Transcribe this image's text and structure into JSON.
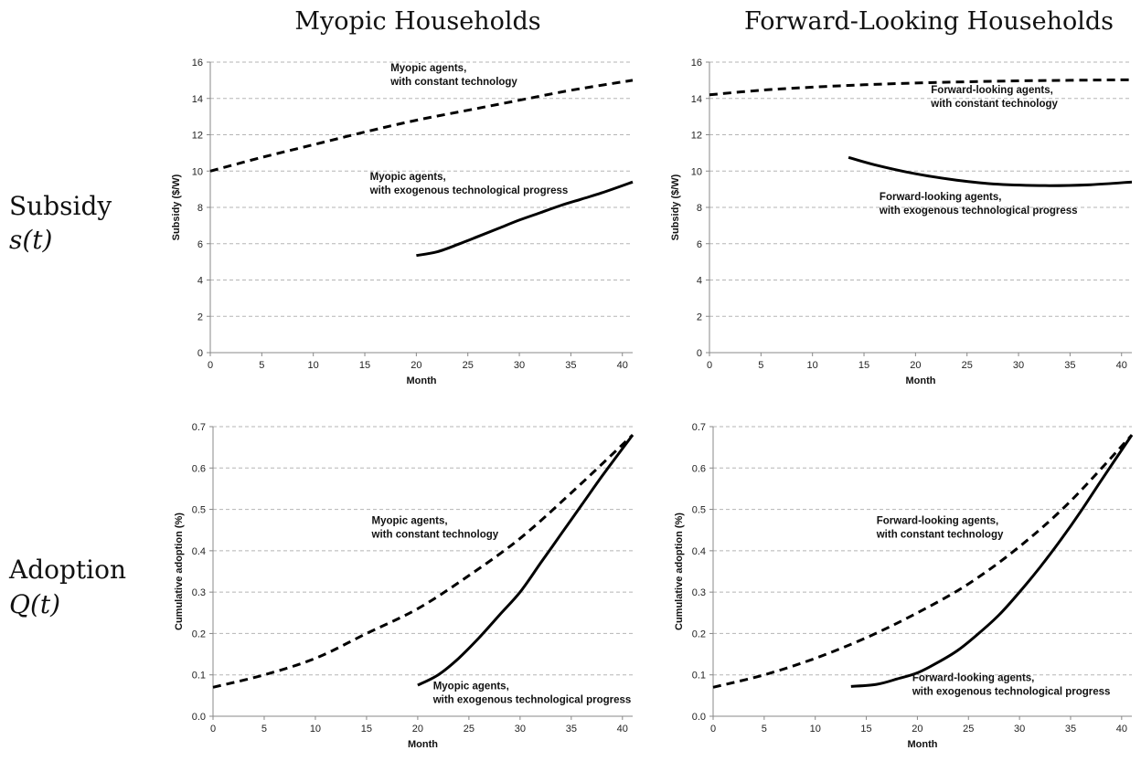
{
  "column_titles": [
    "Myopic Households",
    "Forward-Looking Households"
  ],
  "row_labels": [
    {
      "label": "Subsidy",
      "math": "s(t)"
    },
    {
      "label": "Adoption",
      "math": "Q(t)"
    }
  ],
  "chart_data": [
    {
      "type": "line",
      "title": "",
      "xlabel": "Month",
      "ylabel": "Subsidy ($/W)",
      "xlim": [
        0,
        41
      ],
      "ylim": [
        0,
        16
      ],
      "xticks": [
        0,
        5,
        10,
        15,
        20,
        25,
        30,
        35,
        40
      ],
      "yticks": [
        0,
        2,
        4,
        6,
        8,
        10,
        12,
        14,
        16
      ],
      "grid": true,
      "series": [
        {
          "style": "dashed",
          "x": [
            0,
            5,
            10,
            15,
            20,
            25,
            30,
            35,
            41
          ],
          "y": [
            10.0,
            10.75,
            11.45,
            12.15,
            12.8,
            13.35,
            13.9,
            14.45,
            15.0
          ]
        },
        {
          "style": "solid",
          "x": [
            20,
            22,
            24,
            26,
            28,
            30,
            32,
            34,
            36,
            38,
            41
          ],
          "y": [
            5.35,
            5.55,
            5.95,
            6.4,
            6.85,
            7.3,
            7.7,
            8.1,
            8.45,
            8.8,
            9.4
          ]
        }
      ],
      "annotations": [
        {
          "text": [
            "Myopic agents,",
            "with constant technology"
          ],
          "x": 17.5,
          "y": 15.5
        },
        {
          "text": [
            "Myopic agents,",
            "with exogenous technological progress"
          ],
          "x": 15.5,
          "y": 9.5
        }
      ]
    },
    {
      "type": "line",
      "title": "",
      "xlabel": "Month",
      "ylabel": "Subsidy ($/W)",
      "xlim": [
        0,
        41
      ],
      "ylim": [
        0,
        16
      ],
      "xticks": [
        0,
        5,
        10,
        15,
        20,
        25,
        30,
        35,
        40
      ],
      "yticks": [
        0,
        2,
        4,
        6,
        8,
        10,
        12,
        14,
        16
      ],
      "grid": true,
      "series": [
        {
          "style": "dashed",
          "x": [
            0,
            5,
            10,
            15,
            20,
            25,
            30,
            35,
            41
          ],
          "y": [
            14.2,
            14.45,
            14.62,
            14.75,
            14.85,
            14.92,
            14.97,
            15.0,
            15.03
          ]
        },
        {
          "style": "solid",
          "x": [
            13.5,
            16,
            20,
            24,
            28,
            33,
            37,
            41
          ],
          "y": [
            10.75,
            10.35,
            9.85,
            9.5,
            9.28,
            9.2,
            9.25,
            9.4
          ]
        }
      ],
      "annotations": [
        {
          "text": [
            "Forward-looking agents,",
            "with constant technology"
          ],
          "x": 21.5,
          "y": 14.3
        },
        {
          "text": [
            "Forward-looking agents,",
            "with exogenous technological progress"
          ],
          "x": 16.5,
          "y": 8.4
        }
      ]
    },
    {
      "type": "line",
      "title": "",
      "xlabel": "Month",
      "ylabel": "Cumulative adoption (%)",
      "xlim": [
        0,
        41
      ],
      "ylim": [
        0,
        0.7
      ],
      "xticks": [
        0,
        5,
        10,
        15,
        20,
        25,
        30,
        35,
        40
      ],
      "yticks": [
        0.0,
        0.1,
        0.2,
        0.3,
        0.4,
        0.5,
        0.6,
        0.7
      ],
      "grid": true,
      "series": [
        {
          "style": "dashed",
          "x": [
            0,
            5,
            10,
            15,
            20,
            25,
            30,
            35,
            41
          ],
          "y": [
            0.07,
            0.1,
            0.14,
            0.2,
            0.26,
            0.34,
            0.43,
            0.54,
            0.68
          ]
        },
        {
          "style": "solid",
          "x": [
            20,
            22,
            24,
            26,
            28,
            30,
            32,
            34,
            36,
            38,
            41
          ],
          "y": [
            0.075,
            0.1,
            0.14,
            0.19,
            0.245,
            0.3,
            0.37,
            0.44,
            0.51,
            0.58,
            0.68
          ]
        }
      ],
      "annotations": [
        {
          "text": [
            "Myopic agents,",
            "with constant technology"
          ],
          "x": 15.5,
          "y": 0.465
        },
        {
          "text": [
            "Myopic agents,",
            "with exogenous technological progress"
          ],
          "x": 21.5,
          "y": 0.065
        }
      ]
    },
    {
      "type": "line",
      "title": "",
      "xlabel": "Month",
      "ylabel": "Cumulative adoption (%)",
      "xlim": [
        0,
        41
      ],
      "ylim": [
        0,
        0.7
      ],
      "xticks": [
        0,
        5,
        10,
        15,
        20,
        25,
        30,
        35,
        40
      ],
      "yticks": [
        0.0,
        0.1,
        0.2,
        0.3,
        0.4,
        0.5,
        0.6,
        0.7
      ],
      "grid": true,
      "series": [
        {
          "style": "dashed",
          "x": [
            0,
            5,
            10,
            15,
            20,
            25,
            30,
            35,
            41
          ],
          "y": [
            0.07,
            0.1,
            0.14,
            0.19,
            0.25,
            0.32,
            0.41,
            0.52,
            0.68
          ]
        },
        {
          "style": "solid",
          "x": [
            13.5,
            16,
            18,
            20,
            22,
            24,
            26,
            28,
            30,
            32,
            34,
            36,
            38,
            41
          ],
          "y": [
            0.072,
            0.077,
            0.09,
            0.105,
            0.13,
            0.16,
            0.2,
            0.245,
            0.3,
            0.36,
            0.425,
            0.495,
            0.57,
            0.68
          ]
        }
      ],
      "annotations": [
        {
          "text": [
            "Forward-looking agents,",
            "with constant technology"
          ],
          "x": 16,
          "y": 0.465
        },
        {
          "text": [
            "Forward-looking agents,",
            "with exogenous technological progress"
          ],
          "x": 19.5,
          "y": 0.085
        }
      ]
    }
  ]
}
